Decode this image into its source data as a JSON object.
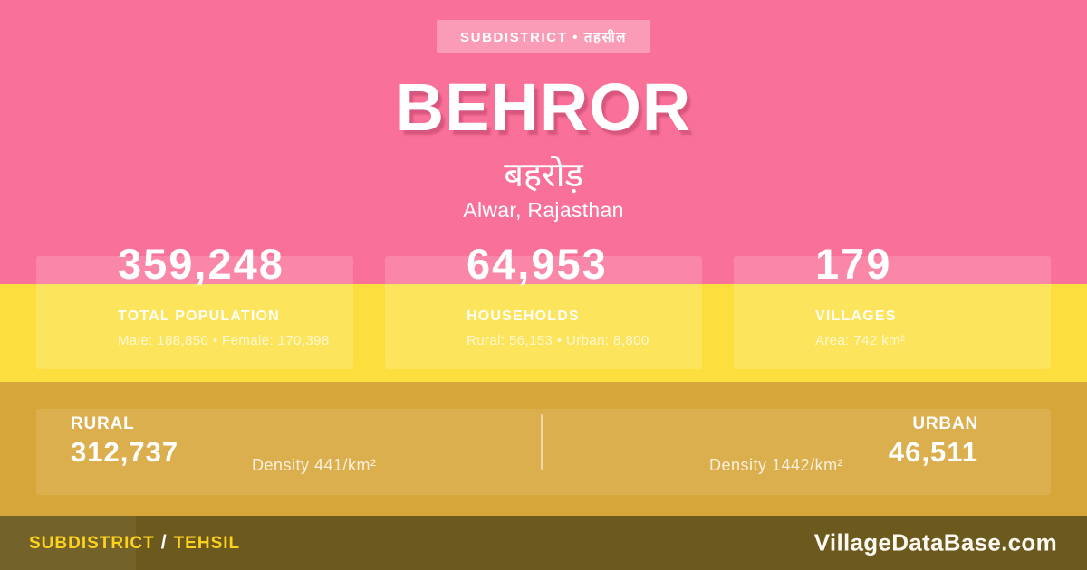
{
  "colors": {
    "pink_bg": "#f97198",
    "yellow_band": "#fcdf3e",
    "gold_band": "#d7a63a",
    "footer_bg": "#6b591d",
    "footer_yellow": "#fdd21e"
  },
  "badge": {
    "label": "SUBDISTRICT • तहसील"
  },
  "header": {
    "title": "BEHROR",
    "title_native": "बहरोड़",
    "location": "Alwar, Rajasthan"
  },
  "stats": [
    {
      "value": "359,248",
      "label": "TOTAL POPULATION",
      "detail": "Male: 188,850 • Female: 170,398"
    },
    {
      "value": "64,953",
      "label": "HOUSEHOLDS",
      "detail": "Rural: 56,153 • Urban: 8,800"
    },
    {
      "value": "179",
      "label": "VILLAGES",
      "detail": "Area: 742 km²"
    }
  ],
  "breakdown": {
    "rural": {
      "label": "RURAL",
      "value": "312,737",
      "density": "Density 441/km²"
    },
    "urban": {
      "label": "URBAN",
      "value": "46,511",
      "density": "Density 1442/km²"
    }
  },
  "footer": {
    "type_primary": "SUBDISTRICT",
    "type_separator": "/",
    "type_secondary": "TEHSIL",
    "site": "VillageDataBase.com"
  }
}
